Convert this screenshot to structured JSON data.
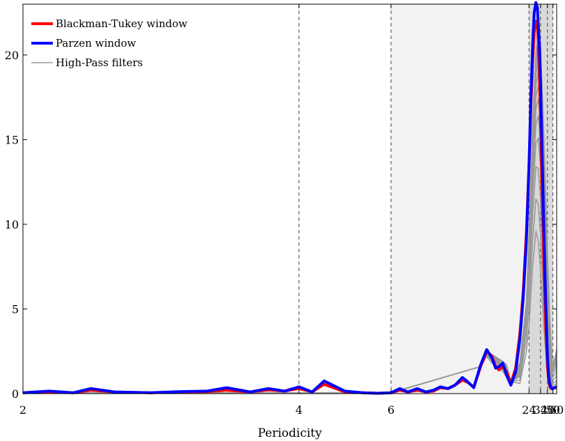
{
  "chart_data": {
    "type": "line",
    "title": "",
    "xlabel": "Periodicity",
    "ylabel": "",
    "x_scale": "reciprocal",
    "xlim": [
      2,
      60
    ],
    "ylim": [
      0,
      23
    ],
    "x_ticks": [
      2,
      4,
      6,
      24,
      32,
      40,
      50,
      60
    ],
    "y_ticks": [
      0,
      5,
      10,
      15,
      20
    ],
    "vertical_dashed_lines": [
      4,
      6,
      24,
      32,
      40,
      50
    ],
    "shaded_bands": [
      {
        "from": 6,
        "to": 24,
        "color": "#f2f2f2"
      },
      {
        "from": 24,
        "to": 50,
        "color": "#d9d9d9"
      }
    ],
    "legend": {
      "placement": "top-left",
      "entries": [
        {
          "label": "Blackman-Tukey window",
          "color": "#ff0000"
        },
        {
          "label": "Parzen window",
          "color": "#0000ff"
        },
        {
          "label": "High-Pass filters",
          "color": "#999999"
        }
      ]
    },
    "series": [
      {
        "name": "Blackman-Tukey window",
        "color": "#ff0000",
        "x": [
          2,
          2.1,
          2.2,
          2.28,
          2.4,
          2.6,
          2.8,
          3.0,
          3.17,
          3.4,
          3.6,
          3.8,
          4.0,
          4.2,
          4.4,
          4.8,
          5.2,
          5.6,
          6.0,
          6.3,
          6.6,
          7.0,
          7.4,
          7.8,
          8.2,
          8.7,
          9.2,
          9.8,
          10.2,
          10.9,
          11.7,
          12.5,
          13.3,
          13.9,
          14.5,
          15.3,
          16.1,
          17.2,
          18.6,
          20.0,
          21.3,
          22.7,
          24.0,
          25.0,
          26.0,
          27.0,
          28.2,
          29.3,
          30.0,
          31.0,
          32.0,
          32.5,
          33.4,
          34.5,
          35.5,
          36.5,
          37.7,
          38.9,
          40.0,
          41.5,
          43.1,
          44.7,
          46.4,
          48.2,
          50.0,
          53.0,
          56.0,
          60.0
        ],
        "y": [
          0.05,
          0.1,
          0.05,
          0.2,
          0.1,
          0.05,
          0.1,
          0.12,
          0.2,
          0.1,
          0.22,
          0.15,
          0.3,
          0.1,
          0.55,
          0.1,
          0.05,
          0.02,
          0.05,
          0.2,
          0.1,
          0.2,
          0.1,
          0.15,
          0.35,
          0.3,
          0.5,
          0.8,
          0.7,
          0.4,
          1.6,
          2.5,
          2.2,
          1.6,
          1.4,
          1.6,
          1.3,
          0.6,
          1.5,
          3.5,
          6.0,
          9.5,
          13.5,
          17.0,
          19.5,
          21.3,
          22.0,
          21.8,
          20.8,
          18.6,
          16.0,
          14.4,
          12.2,
          9.8,
          7.6,
          5.6,
          3.9,
          2.7,
          1.6,
          0.9,
          0.5,
          0.35,
          0.3,
          0.28,
          0.3,
          0.32,
          0.35,
          0.38
        ]
      },
      {
        "name": "Parzen window",
        "color": "#0000ff",
        "x": [
          2,
          2.1,
          2.2,
          2.28,
          2.4,
          2.6,
          2.8,
          3.0,
          3.17,
          3.4,
          3.6,
          3.8,
          4.0,
          4.2,
          4.4,
          4.8,
          5.2,
          5.6,
          6.0,
          6.3,
          6.6,
          7.0,
          7.4,
          7.8,
          8.2,
          8.7,
          9.2,
          9.8,
          10.2,
          10.9,
          11.7,
          12.5,
          13.3,
          13.9,
          14.5,
          15.3,
          16.1,
          17.2,
          18.6,
          20.0,
          21.3,
          22.7,
          24.0,
          25.0,
          26.0,
          27.0,
          28.2,
          29.3,
          30.0,
          31.0,
          32.0,
          32.5,
          33.4,
          34.5,
          35.5,
          36.5,
          37.7,
          38.9,
          40.0,
          41.5,
          43.1,
          44.7,
          46.4,
          48.2,
          50.0,
          53.0,
          56.0,
          60.0
        ],
        "y": [
          0.05,
          0.15,
          0.05,
          0.3,
          0.1,
          0.05,
          0.12,
          0.15,
          0.35,
          0.1,
          0.3,
          0.15,
          0.4,
          0.1,
          0.75,
          0.15,
          0.05,
          0.02,
          0.05,
          0.3,
          0.1,
          0.3,
          0.1,
          0.2,
          0.4,
          0.3,
          0.5,
          0.95,
          0.75,
          0.35,
          1.7,
          2.6,
          2.1,
          1.5,
          1.6,
          1.8,
          1.1,
          0.5,
          1.3,
          3.2,
          5.6,
          9.0,
          13.5,
          17.5,
          20.5,
          22.5,
          23.1,
          22.8,
          21.8,
          20.5,
          18.3,
          16.9,
          14.5,
          11.8,
          9.6,
          7.5,
          5.3,
          3.6,
          2.2,
          1.2,
          0.7,
          0.45,
          0.35,
          0.3,
          0.32,
          0.35,
          0.38,
          0.4
        ]
      },
      {
        "name": "High-Pass filters",
        "color": "#999999",
        "x": [
          2.0,
          6.0,
          11.7,
          12.5,
          13.3,
          15.3,
          16.1,
          17.2,
          20.0,
          22.7,
          24.0,
          26.0,
          28.2,
          30.0,
          32.0,
          35.5,
          38.9,
          43.1,
          48.2,
          50.0,
          56.0,
          60.0
        ],
        "y": [
          0.05,
          0.05,
          1.6,
          2.2,
          1.8,
          1.3,
          1.0,
          0.7,
          0.6,
          2.5,
          4.0,
          7.5,
          9.6,
          9.0,
          7.3,
          3.8,
          1.8,
          0.8,
          0.35,
          0.3,
          0.35,
          0.38
        ]
      },
      {
        "name": "",
        "color": "#999999",
        "x": [
          2.0,
          6.0,
          11.7,
          12.5,
          13.3,
          15.3,
          16.1,
          17.2,
          20.0,
          22.7,
          24.0,
          26.0,
          28.2,
          30.0,
          32.0,
          35.5,
          38.9,
          43.1,
          48.2,
          50.0,
          56.0,
          60.0
        ],
        "y": [
          0.05,
          0.05,
          1.6,
          2.3,
          1.9,
          1.4,
          1.1,
          0.7,
          0.8,
          3.2,
          5.2,
          9.0,
          11.5,
          11.2,
          9.4,
          5.2,
          2.6,
          1.1,
          0.45,
          0.38,
          0.42,
          0.45
        ]
      },
      {
        "name": "",
        "color": "#999999",
        "x": [
          2.0,
          6.0,
          11.7,
          12.5,
          13.3,
          15.3,
          16.1,
          17.2,
          20.0,
          22.7,
          24.0,
          26.0,
          28.2,
          30.0,
          32.0,
          35.5,
          38.9,
          43.1,
          48.2,
          50.0,
          56.0,
          60.0
        ],
        "y": [
          0.05,
          0.05,
          1.6,
          2.3,
          2.0,
          1.5,
          1.2,
          0.7,
          1.0,
          3.8,
          6.2,
          10.5,
          13.4,
          13.3,
          11.5,
          6.7,
          3.4,
          1.4,
          0.55,
          0.48,
          0.55,
          0.6
        ]
      },
      {
        "name": "",
        "color": "#999999",
        "x": [
          2.0,
          6.0,
          11.7,
          12.5,
          13.3,
          15.3,
          16.1,
          17.2,
          20.0,
          22.7,
          24.0,
          26.0,
          28.2,
          30.0,
          32.0,
          35.5,
          38.9,
          43.1,
          48.2,
          50.0,
          56.0,
          60.0
        ],
        "y": [
          0.05,
          0.05,
          1.6,
          2.4,
          2.0,
          1.6,
          1.3,
          0.7,
          1.1,
          4.2,
          7.0,
          11.7,
          14.8,
          15.1,
          13.4,
          8.2,
          4.3,
          1.8,
          0.7,
          0.6,
          0.7,
          0.8
        ]
      },
      {
        "name": "",
        "color": "#999999",
        "x": [
          2.0,
          6.0,
          11.7,
          12.5,
          13.3,
          15.3,
          16.1,
          17.2,
          20.0,
          22.7,
          24.0,
          26.0,
          28.2,
          30.0,
          32.0,
          35.5,
          38.9,
          43.1,
          48.2,
          50.0,
          56.0,
          60.0
        ],
        "y": [
          0.05,
          0.05,
          1.6,
          2.4,
          2.1,
          1.6,
          1.4,
          0.7,
          1.2,
          4.5,
          7.6,
          12.6,
          15.9,
          16.4,
          14.9,
          9.5,
          5.2,
          2.2,
          0.9,
          0.8,
          0.95,
          1.1
        ]
      },
      {
        "name": "",
        "color": "#999999",
        "x": [
          2.0,
          6.0,
          11.7,
          12.5,
          13.3,
          15.3,
          16.1,
          17.2,
          20.0,
          22.7,
          24.0,
          26.0,
          28.2,
          30.0,
          32.0,
          35.5,
          38.9,
          43.1,
          48.2,
          50.0,
          56.0,
          60.0
        ],
        "y": [
          0.05,
          0.05,
          1.6,
          2.4,
          2.1,
          1.7,
          1.4,
          0.7,
          1.3,
          4.7,
          8.0,
          13.3,
          16.8,
          17.4,
          16.1,
          10.7,
          6.1,
          2.7,
          1.1,
          1.0,
          1.2,
          1.4
        ]
      },
      {
        "name": "",
        "color": "#999999",
        "x": [
          2.0,
          6.0,
          11.7,
          12.5,
          13.3,
          15.3,
          16.1,
          17.2,
          20.0,
          22.7,
          24.0,
          26.0,
          28.2,
          30.0,
          32.0,
          35.5,
          38.9,
          43.1,
          48.2,
          50.0,
          56.0,
          60.0
        ],
        "y": [
          0.05,
          0.05,
          1.6,
          2.5,
          2.2,
          1.7,
          1.5,
          0.7,
          1.4,
          4.9,
          8.4,
          13.9,
          17.5,
          18.2,
          17.1,
          11.7,
          6.9,
          3.2,
          1.3,
          1.2,
          1.45,
          1.7
        ]
      },
      {
        "name": "",
        "color": "#999999",
        "x": [
          2.0,
          6.0,
          11.7,
          12.5,
          13.3,
          15.3,
          16.1,
          17.2,
          20.0,
          22.7,
          24.0,
          26.0,
          28.2,
          30.0,
          32.0,
          35.5,
          38.9,
          43.1,
          48.2,
          50.0,
          56.0,
          60.0
        ],
        "y": [
          0.05,
          0.05,
          1.6,
          2.5,
          2.2,
          1.8,
          1.6,
          0.7,
          1.5,
          5.0,
          8.7,
          14.4,
          18.2,
          19.0,
          18.0,
          12.6,
          7.6,
          3.6,
          1.5,
          1.35,
          1.65,
          2.0
        ]
      },
      {
        "name": "",
        "color": "#999999",
        "x": [
          2.0,
          6.0,
          11.7,
          12.5,
          13.3,
          15.3,
          16.1,
          17.2,
          20.0,
          22.7,
          24.0,
          26.0,
          28.2,
          30.0,
          32.0,
          35.5,
          38.9,
          43.1,
          48.2,
          50.0,
          56.0,
          60.0
        ],
        "y": [
          0.05,
          0.05,
          1.6,
          2.5,
          2.3,
          1.8,
          1.6,
          0.7,
          1.6,
          5.1,
          8.9,
          14.8,
          18.8,
          19.7,
          18.8,
          13.4,
          8.3,
          4.0,
          1.7,
          1.5,
          1.85,
          2.2
        ]
      },
      {
        "name": "",
        "color": "#999999",
        "x": [
          2.0,
          6.0,
          11.7,
          12.5,
          13.3,
          15.3,
          16.1,
          17.2,
          20.0,
          22.7,
          24.0,
          26.0,
          28.2,
          30.0,
          32.0,
          35.5,
          38.9,
          43.1,
          48.2,
          50.0,
          56.0,
          60.0
        ],
        "y": [
          0.05,
          0.05,
          1.6,
          2.5,
          2.3,
          1.9,
          1.7,
          0.7,
          1.7,
          5.2,
          9.1,
          15.2,
          19.3,
          20.3,
          19.5,
          14.1,
          8.9,
          4.3,
          1.8,
          1.6,
          2.0,
          2.4
        ]
      },
      {
        "name": "",
        "color": "#999999",
        "x": [
          2.0,
          6.0,
          11.7,
          12.5,
          13.3,
          15.3,
          16.1,
          17.2,
          20.0,
          22.7,
          24.0,
          26.0,
          28.2,
          30.0,
          32.0,
          35.5,
          38.9,
          43.1,
          48.2,
          50.0,
          56.0,
          60.0
        ],
        "y": [
          0.05,
          0.05,
          1.6,
          2.5,
          2.3,
          1.9,
          1.7,
          0.7,
          1.8,
          5.3,
          9.3,
          15.5,
          19.8,
          20.8,
          20.1,
          14.7,
          9.4,
          4.6,
          1.9,
          1.7,
          2.1,
          2.5
        ]
      },
      {
        "name": "",
        "color": "#999999",
        "x": [
          2.0,
          6.0,
          11.7,
          12.5,
          13.3,
          15.3,
          16.1,
          17.2,
          20.0,
          22.7,
          24.0,
          26.0,
          28.2,
          30.0,
          32.0,
          35.5,
          38.9,
          43.1,
          48.2,
          50.0,
          56.0,
          60.0
        ],
        "y": [
          0.05,
          0.05,
          1.6,
          2.5,
          2.3,
          1.9,
          1.7,
          0.7,
          1.8,
          5.4,
          9.4,
          15.7,
          20.1,
          21.1,
          20.5,
          15.1,
          9.7,
          4.8,
          2.0,
          1.8,
          2.2,
          2.6
        ]
      }
    ]
  }
}
